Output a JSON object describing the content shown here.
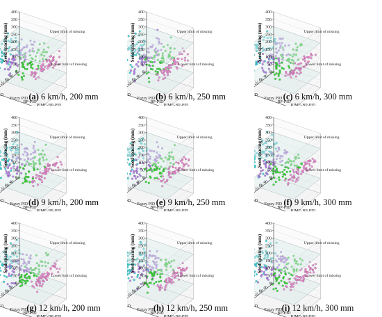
{
  "figure": {
    "axis_labels": {
      "z": "Seed spacing (mm)",
      "x": "Algorithms",
      "y": "Number"
    },
    "z_ticks": [
      "0",
      "50",
      "100",
      "150",
      "200",
      "250",
      "300",
      "350",
      "400"
    ],
    "number_ticks": [
      "0",
      "40",
      "80",
      "120",
      "160",
      "200",
      "240"
    ],
    "algorithms": [
      "PID",
      "Fuzzy PID",
      "BP-PID",
      "RIME-BP-PID"
    ],
    "annotations": {
      "upper": "Upper limit of missing",
      "lower": "Lower limit of missing"
    },
    "colors": {
      "PID": "#3ed3d8",
      "Fuzzy PID": "#b47ee6",
      "BP-PID": "#35d635",
      "RIME-BP-PID": "#e889cf",
      "plane": "#d6e8e8"
    }
  },
  "chart_data": [
    {
      "type": "scatter",
      "letter": "(a)",
      "caption": "6 km/h, 200 mm",
      "zlim": [
        0,
        400
      ],
      "ylim": [
        0,
        240
      ],
      "upper_limit": 300,
      "lower_limit": 100,
      "series": [
        {
          "name": "PID",
          "x": "PID",
          "number_range": [
            0,
            240
          ],
          "mean_spacing": 200,
          "spread": [
            30,
            380
          ]
        },
        {
          "name": "Fuzzy PID",
          "x": "Fuzzy PID",
          "number_range": [
            0,
            240
          ],
          "mean_spacing": 200,
          "spread": [
            60,
            330
          ]
        },
        {
          "name": "BP-PID",
          "x": "BP-PID",
          "number_range": [
            0,
            240
          ],
          "mean_spacing": 200,
          "spread": [
            90,
            320
          ]
        },
        {
          "name": "RIME-BP-PID",
          "x": "RIME-BP-PID",
          "number_range": [
            0,
            240
          ],
          "mean_spacing": 200,
          "spread": [
            140,
            260
          ]
        }
      ]
    },
    {
      "type": "scatter",
      "letter": "(b)",
      "caption": "6 km/h, 250 mm",
      "zlim": [
        0,
        400
      ],
      "ylim": [
        0,
        240
      ],
      "upper_limit": 300,
      "lower_limit": 100,
      "series": [
        {
          "name": "PID",
          "x": "PID",
          "number_range": [
            0,
            240
          ],
          "mean_spacing": 200,
          "spread": [
            30,
            380
          ]
        },
        {
          "name": "Fuzzy PID",
          "x": "Fuzzy PID",
          "number_range": [
            0,
            240
          ],
          "mean_spacing": 200,
          "spread": [
            60,
            330
          ]
        },
        {
          "name": "BP-PID",
          "x": "BP-PID",
          "number_range": [
            0,
            240
          ],
          "mean_spacing": 200,
          "spread": [
            90,
            320
          ]
        },
        {
          "name": "RIME-BP-PID",
          "x": "RIME-BP-PID",
          "number_range": [
            0,
            240
          ],
          "mean_spacing": 200,
          "spread": [
            140,
            260
          ]
        }
      ]
    },
    {
      "type": "scatter",
      "letter": "(c)",
      "caption": "6 km/h, 300 mm",
      "zlim": [
        0,
        400
      ],
      "ylim": [
        0,
        240
      ],
      "upper_limit": 300,
      "lower_limit": 100,
      "series": [
        {
          "name": "PID",
          "x": "PID",
          "number_range": [
            0,
            240
          ],
          "mean_spacing": 200,
          "spread": [
            30,
            380
          ]
        },
        {
          "name": "Fuzzy PID",
          "x": "Fuzzy PID",
          "number_range": [
            0,
            240
          ],
          "mean_spacing": 200,
          "spread": [
            60,
            330
          ]
        },
        {
          "name": "BP-PID",
          "x": "BP-PID",
          "number_range": [
            0,
            240
          ],
          "mean_spacing": 200,
          "spread": [
            90,
            320
          ]
        },
        {
          "name": "RIME-BP-PID",
          "x": "RIME-BP-PID",
          "number_range": [
            0,
            240
          ],
          "mean_spacing": 200,
          "spread": [
            140,
            260
          ]
        }
      ]
    },
    {
      "type": "scatter",
      "letter": "(d)",
      "caption": "9 km/h, 200 mm",
      "zlim": [
        0,
        400
      ],
      "ylim": [
        0,
        240
      ],
      "upper_limit": 300,
      "lower_limit": 100,
      "series": [
        {
          "name": "PID",
          "x": "PID",
          "number_range": [
            0,
            240
          ],
          "mean_spacing": 200,
          "spread": [
            30,
            380
          ]
        },
        {
          "name": "Fuzzy PID",
          "x": "Fuzzy PID",
          "number_range": [
            0,
            240
          ],
          "mean_spacing": 200,
          "spread": [
            60,
            330
          ]
        },
        {
          "name": "BP-PID",
          "x": "BP-PID",
          "number_range": [
            0,
            240
          ],
          "mean_spacing": 200,
          "spread": [
            90,
            320
          ]
        },
        {
          "name": "RIME-BP-PID",
          "x": "RIME-BP-PID",
          "number_range": [
            0,
            240
          ],
          "mean_spacing": 200,
          "spread": [
            140,
            260
          ]
        }
      ]
    },
    {
      "type": "scatter",
      "letter": "(e)",
      "caption": "9 km/h, 250 mm",
      "zlim": [
        0,
        400
      ],
      "ylim": [
        0,
        240
      ],
      "upper_limit": 300,
      "lower_limit": 100,
      "series": [
        {
          "name": "PID",
          "x": "PID",
          "number_range": [
            0,
            240
          ],
          "mean_spacing": 200,
          "spread": [
            30,
            380
          ]
        },
        {
          "name": "Fuzzy PID",
          "x": "Fuzzy PID",
          "number_range": [
            0,
            240
          ],
          "mean_spacing": 200,
          "spread": [
            60,
            330
          ]
        },
        {
          "name": "BP-PID",
          "x": "BP-PID",
          "number_range": [
            0,
            240
          ],
          "mean_spacing": 200,
          "spread": [
            90,
            320
          ]
        },
        {
          "name": "RIME-BP-PID",
          "x": "RIME-BP-PID",
          "number_range": [
            0,
            240
          ],
          "mean_spacing": 200,
          "spread": [
            140,
            260
          ]
        }
      ]
    },
    {
      "type": "scatter",
      "letter": "(f)",
      "caption": "9 km/h, 300 mm",
      "zlim": [
        0,
        400
      ],
      "ylim": [
        0,
        240
      ],
      "upper_limit": 300,
      "lower_limit": 100,
      "series": [
        {
          "name": "PID",
          "x": "PID",
          "number_range": [
            0,
            240
          ],
          "mean_spacing": 200,
          "spread": [
            30,
            380
          ]
        },
        {
          "name": "Fuzzy PID",
          "x": "Fuzzy PID",
          "number_range": [
            0,
            240
          ],
          "mean_spacing": 200,
          "spread": [
            60,
            330
          ]
        },
        {
          "name": "BP-PID",
          "x": "BP-PID",
          "number_range": [
            0,
            240
          ],
          "mean_spacing": 200,
          "spread": [
            90,
            320
          ]
        },
        {
          "name": "RIME-BP-PID",
          "x": "RIME-BP-PID",
          "number_range": [
            0,
            240
          ],
          "mean_spacing": 200,
          "spread": [
            140,
            260
          ]
        }
      ]
    },
    {
      "type": "scatter",
      "letter": "(g)",
      "caption": "12 km/h, 200 mm",
      "zlim": [
        0,
        400
      ],
      "ylim": [
        0,
        240
      ],
      "upper_limit": 300,
      "lower_limit": 100,
      "series": [
        {
          "name": "PID",
          "x": "PID",
          "number_range": [
            0,
            240
          ],
          "mean_spacing": 200,
          "spread": [
            30,
            380
          ]
        },
        {
          "name": "Fuzzy PID",
          "x": "Fuzzy PID",
          "number_range": [
            0,
            240
          ],
          "mean_spacing": 200,
          "spread": [
            60,
            330
          ]
        },
        {
          "name": "BP-PID",
          "x": "BP-PID",
          "number_range": [
            0,
            240
          ],
          "mean_spacing": 200,
          "spread": [
            90,
            320
          ]
        },
        {
          "name": "RIME-BP-PID",
          "x": "RIME-BP-PID",
          "number_range": [
            0,
            240
          ],
          "mean_spacing": 200,
          "spread": [
            140,
            260
          ]
        }
      ]
    },
    {
      "type": "scatter",
      "letter": "(h)",
      "caption": "12 km/h, 250 mm",
      "zlim": [
        0,
        400
      ],
      "ylim": [
        0,
        240
      ],
      "upper_limit": 300,
      "lower_limit": 100,
      "series": [
        {
          "name": "PID",
          "x": "PID",
          "number_range": [
            0,
            240
          ],
          "mean_spacing": 200,
          "spread": [
            30,
            380
          ]
        },
        {
          "name": "Fuzzy PID",
          "x": "Fuzzy PID",
          "number_range": [
            0,
            240
          ],
          "mean_spacing": 200,
          "spread": [
            60,
            330
          ]
        },
        {
          "name": "BP-PID",
          "x": "BP-PID",
          "number_range": [
            0,
            240
          ],
          "mean_spacing": 200,
          "spread": [
            90,
            320
          ]
        },
        {
          "name": "RIME-BP-PID",
          "x": "RIME-BP-PID",
          "number_range": [
            0,
            240
          ],
          "mean_spacing": 200,
          "spread": [
            140,
            260
          ]
        }
      ]
    },
    {
      "type": "scatter",
      "letter": "(i)",
      "caption": "12 km/h, 300 mm",
      "zlim": [
        0,
        400
      ],
      "ylim": [
        0,
        240
      ],
      "upper_limit": 300,
      "lower_limit": 100,
      "series": [
        {
          "name": "PID",
          "x": "PID",
          "number_range": [
            0,
            240
          ],
          "mean_spacing": 200,
          "spread": [
            30,
            380
          ]
        },
        {
          "name": "Fuzzy PID",
          "x": "Fuzzy PID",
          "number_range": [
            0,
            240
          ],
          "mean_spacing": 200,
          "spread": [
            60,
            330
          ]
        },
        {
          "name": "BP-PID",
          "x": "BP-PID",
          "number_range": [
            0,
            240
          ],
          "mean_spacing": 200,
          "spread": [
            90,
            320
          ]
        },
        {
          "name": "RIME-BP-PID",
          "x": "RIME-BP-PID",
          "number_range": [
            0,
            240
          ],
          "mean_spacing": 200,
          "spread": [
            140,
            260
          ]
        }
      ]
    }
  ]
}
